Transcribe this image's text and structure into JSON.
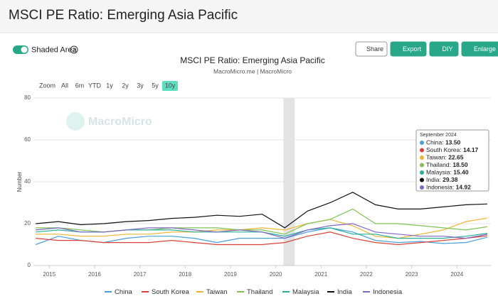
{
  "page": {
    "heading": "MSCI PE Ratio: Emerging Asia Pacific",
    "toggle_label": "Shaded Area",
    "help_icon": "?",
    "buttons": [
      "Share",
      "Export",
      "DIY",
      "Enlarge"
    ],
    "zoom_label": "Zoom",
    "zoom_options": [
      "All",
      "6m",
      "YTD",
      "1y",
      "2y",
      "3y",
      "5y",
      "10y"
    ],
    "zoom_active": 7
  },
  "chart_data": {
    "type": "line",
    "title": "MSCI PE Ratio: Emerging Asia Pacific",
    "subtitle": "MacroMicro.me | MacroMicro",
    "watermark": "MacroMicro",
    "y_label": "Number",
    "x": [
      2014.7,
      2015.2,
      2015.7,
      2016.2,
      2016.7,
      2017.2,
      2017.7,
      2018.2,
      2018.7,
      2019.2,
      2019.7,
      2020.2,
      2020.7,
      2021.2,
      2021.7,
      2022.2,
      2022.7,
      2023.2,
      2023.7,
      2024.2,
      2024.67
    ],
    "xlim": [
      2014.65,
      2024.75
    ],
    "xticks": [
      2015,
      2016,
      2017,
      2018,
      2019,
      2020,
      2021,
      2022,
      2023,
      2024
    ],
    "ylim": [
      0,
      80
    ],
    "yticks": [
      0,
      20,
      40,
      60,
      80
    ],
    "grid": true,
    "shaded_range": [
      2020.17,
      2020.42
    ],
    "series": [
      {
        "name": "China",
        "color": "#4a9fd8",
        "values": [
          10,
          14,
          12,
          11,
          13,
          14,
          14,
          13,
          11,
          13,
          13,
          13,
          16,
          18,
          16,
          12,
          11,
          11.5,
          10.5,
          11,
          13.5
        ]
      },
      {
        "name": "South Korea",
        "color": "#d9423a",
        "values": [
          13,
          12,
          12,
          11,
          11,
          11,
          12,
          11,
          10,
          10,
          10,
          11,
          14,
          16,
          13,
          11,
          10,
          11,
          12,
          13,
          14.17
        ]
      },
      {
        "name": "Taiwan",
        "color": "#f0b432",
        "values": [
          15,
          15,
          14,
          14,
          15,
          15,
          16,
          16,
          17,
          17,
          18,
          17,
          20,
          22,
          19,
          14,
          13,
          15,
          17,
          21,
          22.65
        ]
      },
      {
        "name": "Thailand",
        "color": "#7fc254",
        "values": [
          18,
          18,
          17,
          16,
          17,
          17,
          18,
          18,
          18,
          17,
          17,
          15,
          20,
          22,
          27,
          20,
          20,
          19,
          18,
          17,
          18.5
        ]
      },
      {
        "name": "Malaysia",
        "color": "#2ab09a",
        "values": [
          16,
          17,
          16,
          16,
          17,
          17,
          17,
          16,
          16,
          16,
          16,
          14,
          17,
          18,
          15,
          15,
          13,
          13,
          13,
          14,
          15.4
        ]
      },
      {
        "name": "India",
        "color": "#111111",
        "values": [
          20,
          21,
          19.5,
          20,
          21,
          21.5,
          22.5,
          23,
          24,
          23.5,
          24.5,
          18,
          26,
          30,
          35,
          29,
          27,
          27,
          28,
          29,
          29.38
        ]
      },
      {
        "name": "Indonesia",
        "color": "#8067c4",
        "values": [
          17,
          18,
          16,
          16,
          17,
          18,
          18,
          17,
          16,
          17,
          16,
          13,
          17,
          19,
          20,
          16,
          15,
          14,
          14,
          13,
          14.92
        ]
      }
    ],
    "tooltip": {
      "title": "September 2024",
      "labels": [
        "13.50",
        "14.17",
        "22.65",
        "18.50",
        "15.40",
        "29.38",
        "14.92"
      ]
    }
  }
}
